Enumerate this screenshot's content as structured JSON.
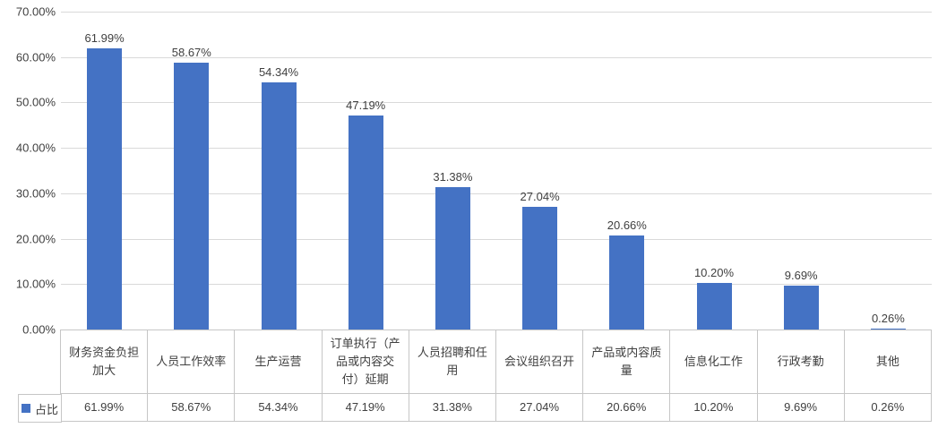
{
  "chart_data": {
    "type": "bar",
    "title": "",
    "xlabel": "",
    "ylabel": "",
    "categories": [
      "财务资金负担加大",
      "人员工作效率",
      "生产运营",
      "订单执行（产品或内容交付）延期",
      "人员招聘和任用",
      "会议组织召开",
      "产品或内容质量",
      "信息化工作",
      "行政考勤",
      "其他"
    ],
    "series": [
      {
        "name": "占比",
        "values": [
          61.99,
          58.67,
          54.34,
          47.19,
          31.38,
          27.04,
          20.66,
          10.2,
          9.69,
          0.26
        ]
      }
    ],
    "value_labels": [
      "61.99%",
      "58.67%",
      "54.34%",
      "47.19%",
      "31.38%",
      "27.04%",
      "20.66%",
      "10.20%",
      "9.69%",
      "0.26%"
    ],
    "y_ticks": [
      {
        "value": 0,
        "label": "0.00%"
      },
      {
        "value": 10,
        "label": "10.00%"
      },
      {
        "value": 20,
        "label": "20.00%"
      },
      {
        "value": 30,
        "label": "30.00%"
      },
      {
        "value": 40,
        "label": "40.00%"
      },
      {
        "value": 50,
        "label": "50.00%"
      },
      {
        "value": 60,
        "label": "60.00%"
      },
      {
        "value": 70,
        "label": "70.00%"
      }
    ],
    "ylim": [
      0,
      70
    ],
    "grid": true,
    "legend": {
      "position": "data-table-left",
      "entries": [
        {
          "label": "占比",
          "color": "#4472C4"
        }
      ]
    },
    "has_data_table": true,
    "colors": {
      "bar": "#4472C4",
      "gridline": "#d9d9d9",
      "axis_line": "#bfbfbf",
      "table_border": "#c6c6c6",
      "text": "#404040",
      "background": "#ffffff"
    }
  }
}
